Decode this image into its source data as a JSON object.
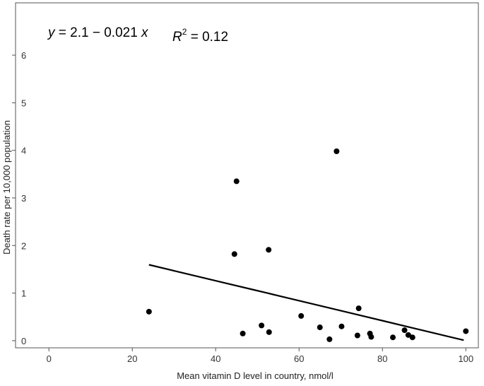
{
  "chart_data": {
    "type": "scatter",
    "xlabel": "Mean vitamin D level in country, nmol/l",
    "ylabel": "Death rate per 10,000 population",
    "xlim": [
      -8,
      103
    ],
    "ylim": [
      -0.15,
      7.1
    ],
    "x_ticks": [
      0,
      20,
      40,
      60,
      80,
      100
    ],
    "y_ticks": [
      0,
      1,
      2,
      3,
      4,
      5,
      6
    ],
    "grid": false,
    "points": [
      {
        "x": 24,
        "y": 0.61
      },
      {
        "x": 44.5,
        "y": 1.82
      },
      {
        "x": 45,
        "y": 3.35
      },
      {
        "x": 46.5,
        "y": 0.15
      },
      {
        "x": 51,
        "y": 0.32
      },
      {
        "x": 52.7,
        "y": 1.91
      },
      {
        "x": 52.8,
        "y": 0.18
      },
      {
        "x": 60.5,
        "y": 0.52
      },
      {
        "x": 65,
        "y": 0.28
      },
      {
        "x": 67.3,
        "y": 0.03
      },
      {
        "x": 69,
        "y": 3.98
      },
      {
        "x": 70.2,
        "y": 0.3
      },
      {
        "x": 74,
        "y": 0.11
      },
      {
        "x": 74.3,
        "y": 0.68
      },
      {
        "x": 77,
        "y": 0.15
      },
      {
        "x": 77.3,
        "y": 0.08
      },
      {
        "x": 82.5,
        "y": 0.07
      },
      {
        "x": 85.3,
        "y": 0.22
      },
      {
        "x": 86.2,
        "y": 0.12
      },
      {
        "x": 87.2,
        "y": 0.07
      },
      {
        "x": 100,
        "y": 0.2
      }
    ],
    "fit_line": {
      "intercept": 2.1,
      "slope": -0.021,
      "x_range": [
        24,
        99.5
      ]
    },
    "annotations": {
      "equation_y": "y",
      "equation_rest": " = 2.1 − 0.021 ",
      "equation_x": "x",
      "r2_label": "R",
      "r2_sup": "2",
      "r2_value": " = 0.12"
    },
    "colors": {
      "points": "#000000",
      "fit_line": "#000000",
      "axes": "#555555"
    }
  }
}
